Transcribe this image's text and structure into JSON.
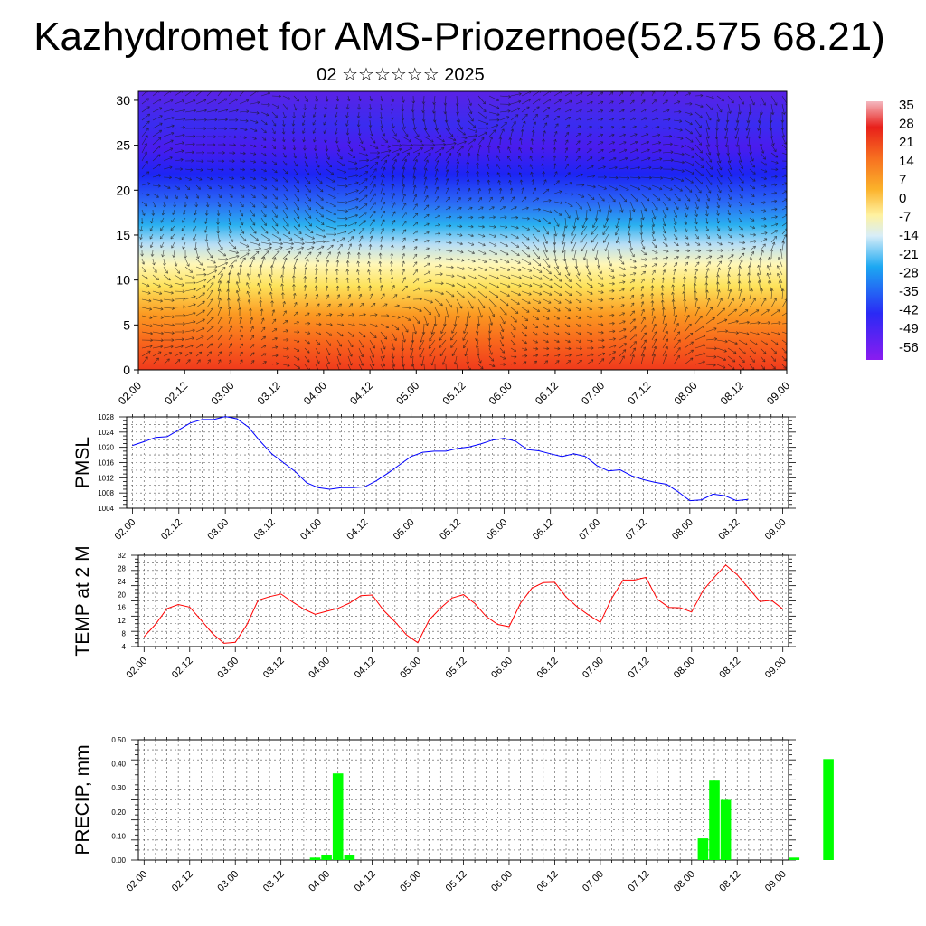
{
  "title": "Kazhydromet for AMS-Priozernoe(52.575 68.21)",
  "subtitle": "02 ☆☆☆☆☆☆ 2025",
  "colors": {
    "pmsl_line": "#0000ff",
    "temp_line": "#ff0000",
    "precip_bar": "#00ff00",
    "grid": "#000000"
  },
  "chart_data": [
    {
      "type": "heatmap",
      "title": "",
      "xlabel": "",
      "ylabel": "",
      "x_tick_labels": [
        "02.00",
        "02.12",
        "03.00",
        "03.12",
        "04.00",
        "04.12",
        "05.00",
        "05.12",
        "06.00",
        "06.12",
        "07.00",
        "07.12",
        "08.00",
        "08.12",
        "09.00"
      ],
      "y_tick_labels": [
        "0",
        "5",
        "10",
        "15",
        "20",
        "25",
        "30"
      ],
      "ylim": [
        0,
        31
      ],
      "colorbar_labels": [
        "35",
        "28",
        "21",
        "14",
        "7",
        "0",
        "-7",
        "-14",
        "-21",
        "-28",
        "-35",
        "-42",
        "-49",
        "-56"
      ],
      "colorbar_range": [
        -60,
        38
      ],
      "overlay": "wind vectors"
    },
    {
      "type": "line",
      "ylabel": "PMSL",
      "x_tick_labels": [
        "02.00",
        "02.12",
        "03.00",
        "03.12",
        "04.00",
        "04.12",
        "05.00",
        "05.12",
        "06.00",
        "06.12",
        "07.00",
        "07.12",
        "08.00",
        "08.12",
        "09.00"
      ],
      "ylim": [
        1004,
        1028
      ],
      "y_ticks": [
        1004,
        1008,
        1012,
        1016,
        1020,
        1024,
        1028
      ],
      "x_step_hours": 3,
      "values": [
        1020.5,
        1021.5,
        1022.6,
        1022.8,
        1024.6,
        1026.4,
        1027.3,
        1027.3,
        1028.1,
        1027.5,
        1025.3,
        1021.6,
        1018.3,
        1016.0,
        1013.7,
        1010.7,
        1009.4,
        1009.0,
        1009.4,
        1009.4,
        1009.6,
        1011.2,
        1013.2,
        1015.4,
        1017.6,
        1018.7,
        1019.0,
        1019.0,
        1019.7,
        1020.1,
        1020.9,
        1021.9,
        1022.4,
        1021.6,
        1019.4,
        1019.1,
        1018.3,
        1017.6,
        1018.3,
        1017.6,
        1015.2,
        1013.8,
        1014.1,
        1012.5,
        1011.5,
        1010.8,
        1010.3,
        1008.3,
        1006.0,
        1006.2,
        1007.7,
        1007.3,
        1006.0,
        1006.3
      ]
    },
    {
      "type": "line",
      "ylabel": "TEMP at 2 M",
      "x_tick_labels": [
        "02.00",
        "02.12",
        "03.00",
        "03.12",
        "04.00",
        "04.12",
        "05.00",
        "05.12",
        "06.00",
        "06.12",
        "07.00",
        "07.12",
        "08.00",
        "08.12",
        "09.00"
      ],
      "ylim": [
        4,
        32
      ],
      "y_ticks": [
        4,
        8,
        12,
        16,
        20,
        24,
        28,
        32
      ],
      "x_step_hours": 3,
      "values": [
        7.0,
        10.8,
        15.6,
        16.9,
        16.1,
        12.1,
        8.0,
        5.0,
        5.3,
        10.6,
        18.2,
        19.3,
        20.1,
        17.7,
        15.5,
        13.9,
        14.8,
        15.7,
        17.3,
        19.6,
        19.8,
        15.1,
        11.6,
        7.6,
        5.2,
        12.2,
        15.8,
        18.9,
        19.9,
        17.2,
        13.2,
        10.8,
        10.1,
        17.3,
        21.9,
        23.6,
        23.7,
        19.2,
        16.1,
        13.6,
        11.4,
        18.8,
        24.4,
        24.4,
        25.2,
        18.5,
        16.0,
        15.9,
        14.6,
        21.2,
        25.3,
        29.0,
        26.0,
        21.9,
        17.8,
        18.2,
        15.5
      ]
    },
    {
      "type": "bar",
      "ylabel": "PRECIP, mm",
      "x_tick_labels": [
        "02.00",
        "02.12",
        "03.00",
        "03.12",
        "04.00",
        "04.12",
        "05.00",
        "05.12",
        "06.00",
        "06.12",
        "07.00",
        "07.12",
        "08.00",
        "08.12",
        "09.00"
      ],
      "ylim": [
        0,
        0.5
      ],
      "y_tick_labels": [
        "0.00",
        "0.10",
        "0.20",
        "0.30",
        "0.40",
        "0.50"
      ],
      "x_step_hours": 3,
      "values": [
        0,
        0,
        0,
        0,
        0,
        0,
        0,
        0,
        0,
        0,
        0,
        0,
        0,
        0,
        0,
        0.01,
        0.02,
        0.36,
        0.02,
        0,
        0,
        0,
        0,
        0,
        0,
        0,
        0,
        0,
        0,
        0,
        0,
        0,
        0,
        0,
        0,
        0,
        0,
        0,
        0,
        0,
        0,
        0,
        0,
        0,
        0,
        0,
        0,
        0,
        0,
        0.09,
        0.33,
        0.25,
        0,
        0,
        0,
        0,
        0,
        0.01,
        0,
        0,
        0.42
      ]
    }
  ]
}
